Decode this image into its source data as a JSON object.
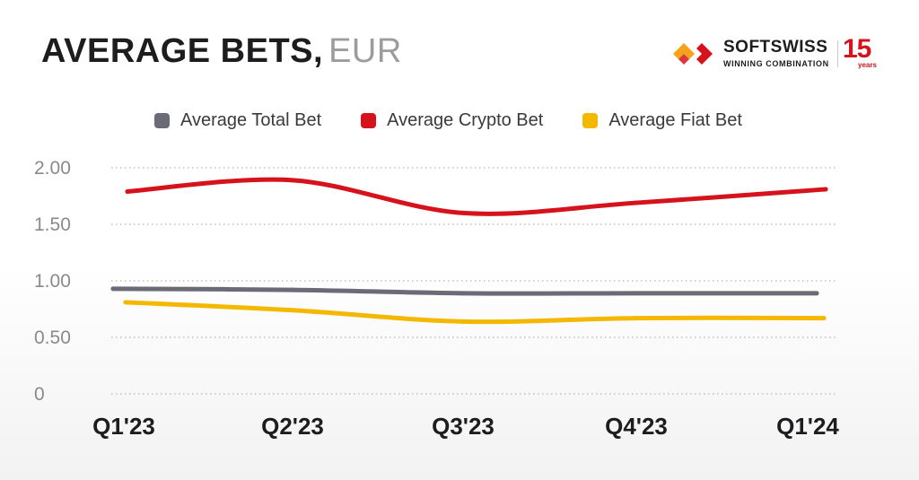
{
  "header": {
    "title": "AVERAGE BETS,",
    "unit": "EUR"
  },
  "logo": {
    "brand": "SOFTSWISS",
    "tagline": "WINNING COMBINATION",
    "badge": "15",
    "badge_sub": "years",
    "icon": "softswiss-logo-icon",
    "colors": {
      "orange": "#f5a31a",
      "red": "#d6131c"
    }
  },
  "chart_data": {
    "type": "line",
    "categories": [
      "Q1'23",
      "Q2'23",
      "Q3'23",
      "Q4'23",
      "Q1'24"
    ],
    "y_ticks": [
      "2.00",
      "1.50",
      "1.00",
      "0.50",
      "0"
    ],
    "ylim": [
      0,
      2
    ],
    "grid": true,
    "legend_position": "top",
    "series": [
      {
        "name": "Average Total Bet",
        "color": "#6b6b78",
        "values": [
          0.93,
          0.92,
          0.89,
          0.89,
          0.89
        ]
      },
      {
        "name": "Average Crypto Bet",
        "color": "#d6131c",
        "values": [
          1.79,
          1.89,
          1.6,
          1.69,
          1.81
        ]
      },
      {
        "name": "Average Fiat Bet",
        "color": "#f5b800",
        "values": [
          0.81,
          0.74,
          0.64,
          0.67,
          0.67
        ]
      }
    ]
  }
}
